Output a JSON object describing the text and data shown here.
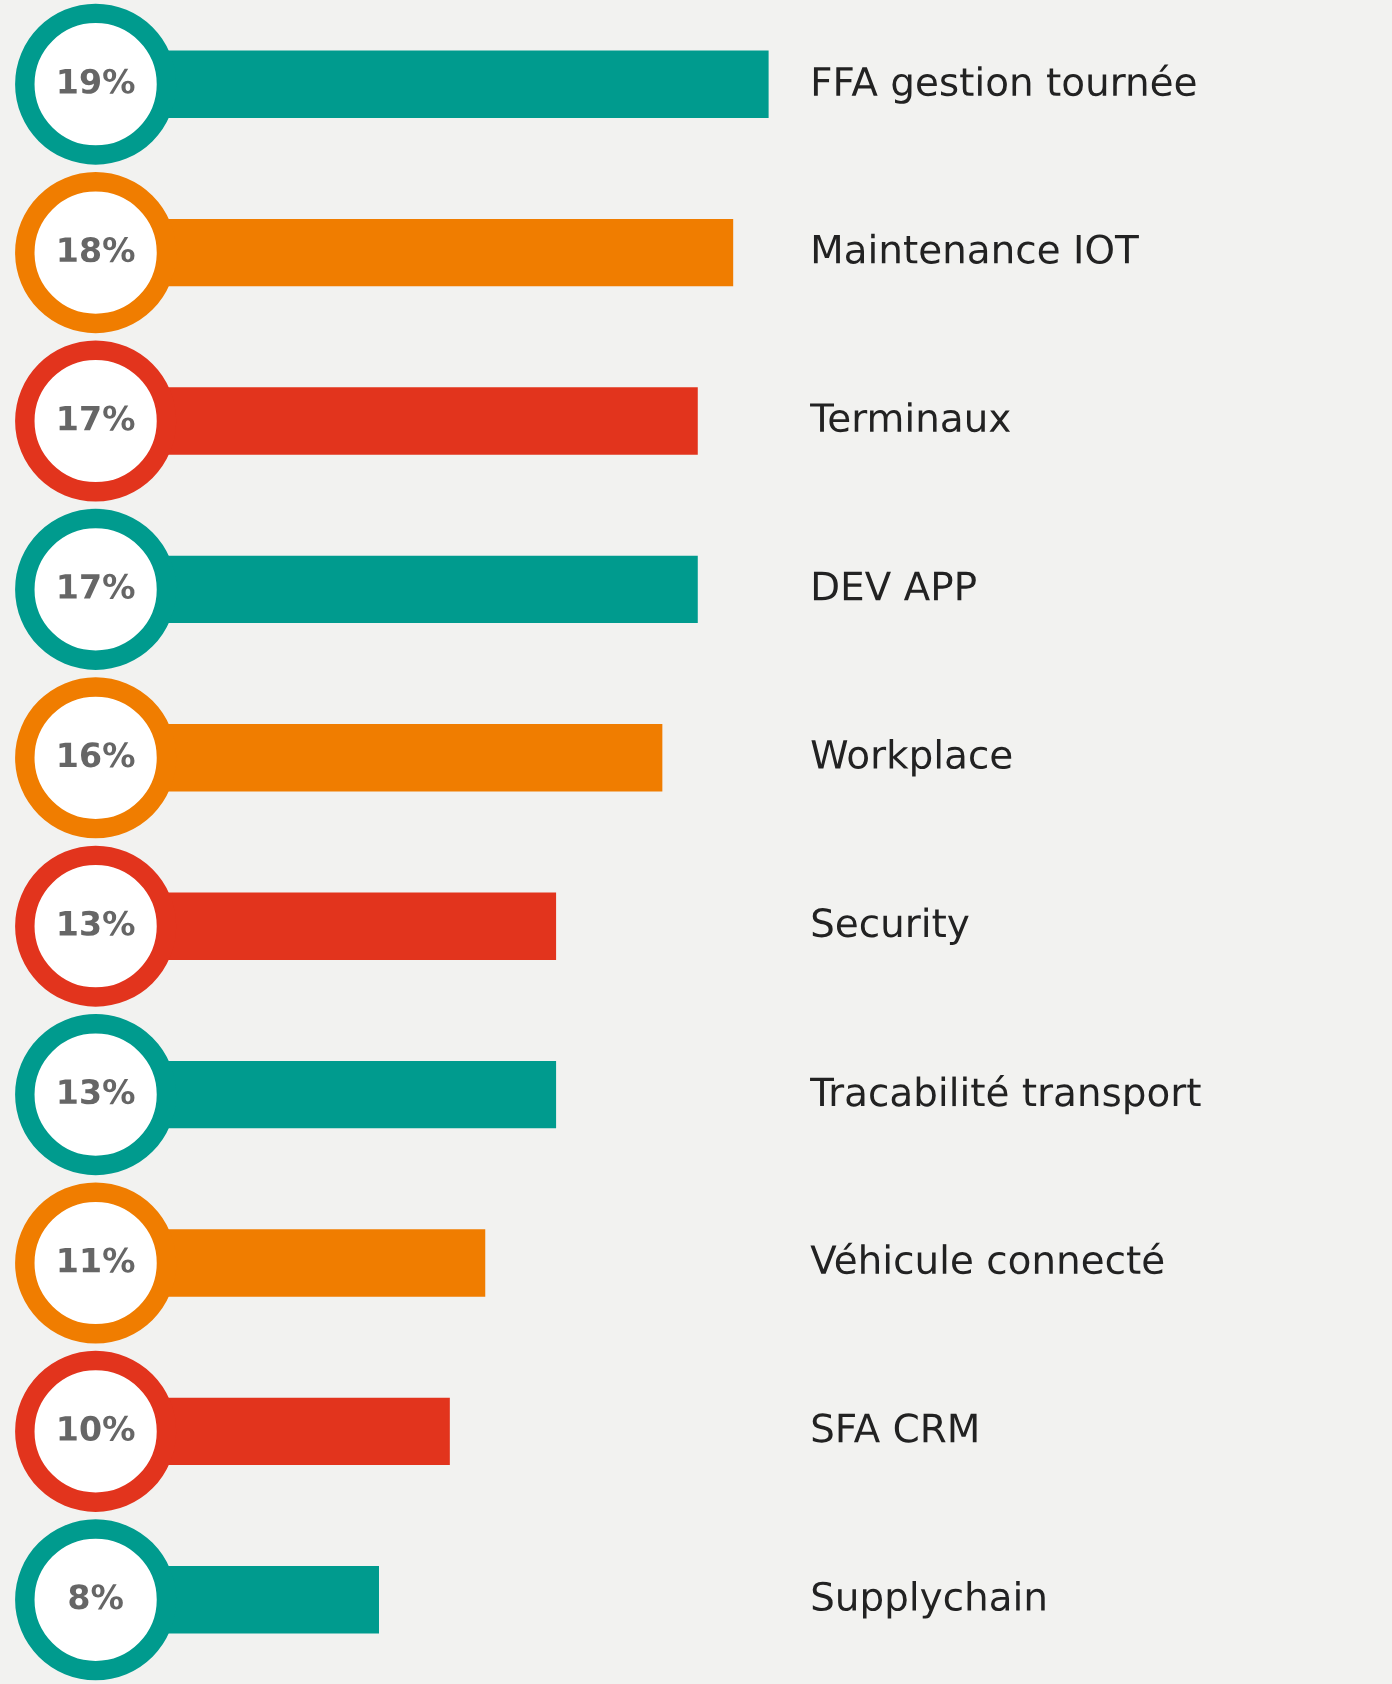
{
  "chart_data": {
    "type": "bar",
    "orientation": "horizontal",
    "categories": [
      "FFA gestion tournée",
      "Maintenance IOT",
      "Terminaux",
      "DEV APP",
      "Workplace",
      "Security",
      "Tracabilité transport",
      "Véhicule connecté",
      "SFA CRM",
      "Supplychain"
    ],
    "values": [
      19,
      18,
      17,
      17,
      16,
      13,
      13,
      11,
      10,
      8
    ],
    "value_labels": [
      "19%",
      "18%",
      "17%",
      "17%",
      "16%",
      "13%",
      "13%",
      "11%",
      "10%",
      "8%"
    ],
    "colors": [
      "#009b8e",
      "#f07d00",
      "#e2341d",
      "#009b8e",
      "#f07d00",
      "#e2341d",
      "#009b8e",
      "#f07d00",
      "#e2341d",
      "#009b8e"
    ],
    "xlim": [
      -2.7,
      36.6
    ]
  }
}
